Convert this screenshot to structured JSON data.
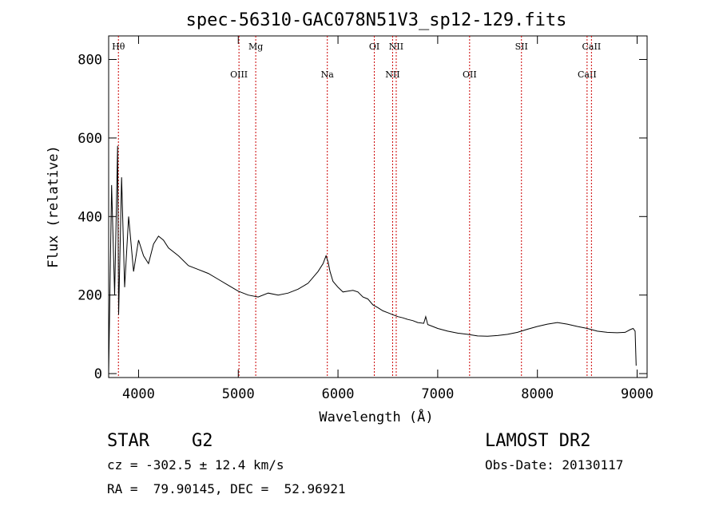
{
  "chart_data": {
    "type": "line",
    "title": "spec-56310-GAC078N51V3_sp12-129.fits",
    "xlabel": "Wavelength (Å)",
    "ylabel": "Flux (relative)",
    "xlim": [
      3700,
      9100
    ],
    "ylim": [
      -10,
      860
    ],
    "xticks": [
      4000,
      5000,
      6000,
      7000,
      8000,
      9000
    ],
    "yticks": [
      0,
      200,
      400,
      600,
      800
    ],
    "grid": false,
    "legend": "none",
    "series": [
      {
        "x": [
          3700,
          3730,
          3760,
          3790,
          3800,
          3830,
          3860,
          3900,
          3950,
          4000,
          4050,
          4100,
          4150,
          4200,
          4250,
          4300,
          4400,
          4500,
          4600,
          4700,
          4800,
          4900,
          5000,
          5100,
          5200,
          5300,
          5400,
          5500,
          5600,
          5700,
          5800,
          5850,
          5880,
          5900,
          5920,
          5950,
          6000,
          6050,
          6100,
          6150,
          6200,
          6250,
          6300,
          6350,
          6400,
          6450,
          6500,
          6550,
          6600,
          6650,
          6700,
          6750,
          6800,
          6860,
          6880,
          6900,
          6950,
          7000,
          7100,
          7200,
          7300,
          7400,
          7500,
          7600,
          7700,
          7800,
          7900,
          8000,
          8100,
          8200,
          8250,
          8300,
          8400,
          8500,
          8600,
          8700,
          8800,
          8880,
          8930,
          8960,
          8980,
          8990
        ],
        "values": [
          0,
          480,
          200,
          580,
          150,
          500,
          220,
          400,
          260,
          340,
          300,
          280,
          330,
          350,
          340,
          320,
          300,
          275,
          265,
          255,
          240,
          225,
          210,
          200,
          195,
          205,
          200,
          205,
          215,
          230,
          260,
          280,
          300,
          285,
          260,
          235,
          220,
          208,
          210,
          212,
          208,
          195,
          190,
          175,
          168,
          160,
          155,
          150,
          145,
          142,
          138,
          135,
          130,
          128,
          145,
          125,
          120,
          115,
          108,
          103,
          100,
          96,
          95,
          97,
          100,
          105,
          113,
          120,
          126,
          130,
          128,
          126,
          120,
          115,
          108,
          105,
          104,
          105,
          112,
          115,
          108,
          20
        ]
      }
    ],
    "lines": [
      {
        "name": "Hθ",
        "x": 3798
      },
      {
        "name": "OIII",
        "x": 5007
      },
      {
        "name": "Mg",
        "x": 5175
      },
      {
        "name": "Na",
        "x": 5893
      },
      {
        "name": "OI",
        "x": 6364
      },
      {
        "name": "NII",
        "x": 6548
      },
      {
        "name": "NII",
        "x": 6584
      },
      {
        "name": "OII",
        "x": 7320
      },
      {
        "name": "SII",
        "x": 7840
      },
      {
        "name": "CaII",
        "x": 8498
      },
      {
        "name": "CaII",
        "x": 8542
      }
    ]
  },
  "info": {
    "class_line": "STAR    G2",
    "survey": "LAMOST DR2",
    "cz": "cz = -302.5 ± 12.4 km/s",
    "obs_date": "Obs-Date: 20130117",
    "coords": "RA =  79.90145, DEC =  52.96921"
  }
}
